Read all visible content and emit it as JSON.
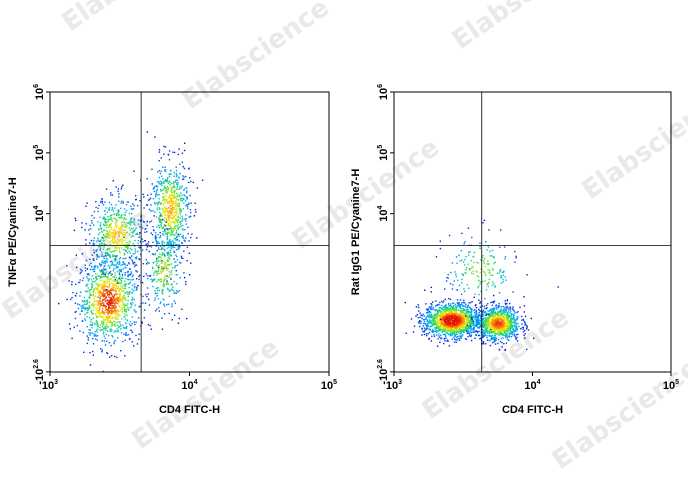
{
  "watermark": "Elabscience",
  "chart_data": [
    {
      "type": "scatter",
      "xlabel": "CD4 FITC-H",
      "ylabel": "TNFα PE/Cyanine7-H",
      "xscale": "log",
      "yscale": "log",
      "xlim": [
        1000,
        100000
      ],
      "ylim": [
        -400,
        1000000
      ],
      "x_ticks": [
        {
          "base": "10",
          "exp": "3",
          "value": 1000
        },
        {
          "base": "10",
          "exp": "4",
          "value": 10000
        },
        {
          "base": "10",
          "exp": "5",
          "value": 100000
        }
      ],
      "y_ticks": [
        {
          "base": "-10",
          "exp": "2.6",
          "value": -398
        },
        {
          "base": "10",
          "exp": "4",
          "value": 10000
        },
        {
          "base": "10",
          "exp": "5",
          "value": 100000
        },
        {
          "base": "10",
          "exp": "6",
          "value": 1000000
        }
      ],
      "gate": {
        "x": 4500,
        "y": 3000
      },
      "populations": [
        {
          "name": "",
          "x_center": 2600,
          "y_center": 380,
          "x_spread": 0.11,
          "y_spread": 0.35,
          "weight": 0.42
        },
        {
          "name": "",
          "x_center": 3000,
          "y_center": 4500,
          "x_spread": 0.1,
          "y_spread": 0.32,
          "weight": 0.22
        },
        {
          "name": "",
          "x_center": 7200,
          "y_center": 12000,
          "x_spread": 0.07,
          "y_spread": 0.4,
          "weight": 0.25
        },
        {
          "name": "",
          "x_center": 6500,
          "y_center": 1200,
          "x_spread": 0.07,
          "y_spread": 0.35,
          "weight": 0.11
        }
      ]
    },
    {
      "type": "scatter",
      "xlabel": "CD4 FITC-H",
      "ylabel": "Rat IgG1 PE/Cyanine7-H",
      "xscale": "log",
      "yscale": "log",
      "xlim": [
        1000,
        100000
      ],
      "ylim": [
        -400,
        1000000
      ],
      "x_ticks": [
        {
          "base": "10",
          "exp": "3",
          "value": 1000
        },
        {
          "base": "10",
          "exp": "4",
          "value": 10000
        },
        {
          "base": "10",
          "exp": "5",
          "value": 100000
        }
      ],
      "y_ticks": [
        {
          "base": "-10",
          "exp": "2.6",
          "value": -398
        },
        {
          "base": "10",
          "exp": "4",
          "value": 10000
        },
        {
          "base": "10",
          "exp": "5",
          "value": 100000
        },
        {
          "base": "10",
          "exp": "6",
          "value": 1000000
        }
      ],
      "gate": {
        "x": 4300,
        "y": 3000
      },
      "populations": [
        {
          "name": "",
          "x_center": 2600,
          "y_center": 180,
          "x_spread": 0.1,
          "y_spread": 0.14,
          "weight": 0.55
        },
        {
          "name": "",
          "x_center": 5600,
          "y_center": 160,
          "x_spread": 0.08,
          "y_spread": 0.14,
          "weight": 0.38
        },
        {
          "name": "",
          "x_center": 4200,
          "y_center": 1200,
          "x_spread": 0.13,
          "y_spread": 0.3,
          "weight": 0.07
        }
      ]
    }
  ]
}
